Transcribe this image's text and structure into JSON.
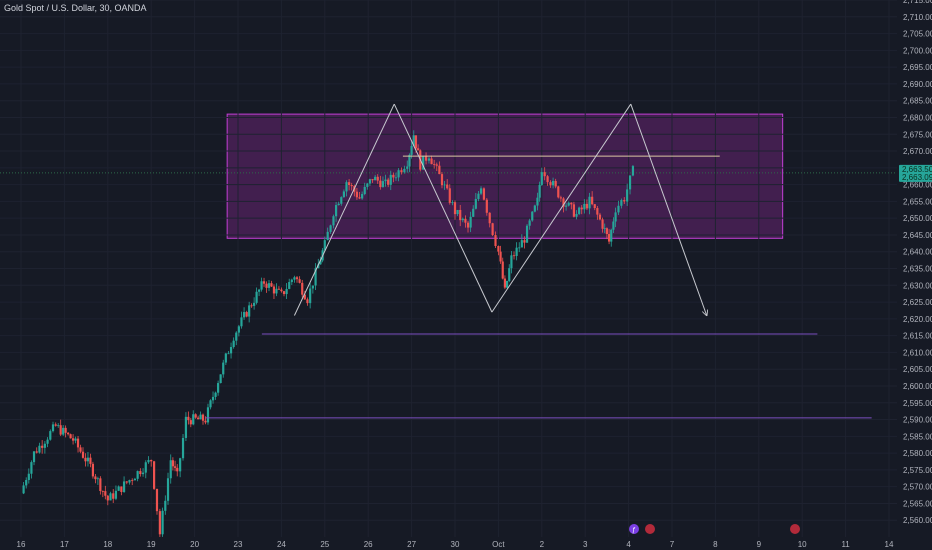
{
  "header": {
    "symbol_title": "Gold Spot / U.S. Dollar, 30, OANDA"
  },
  "chart_data": {
    "type": "candlestick",
    "symbol": "Gold Spot / U.S. Dollar",
    "interval": "30",
    "source": "OANDA",
    "ylim": [
      2555,
      2715
    ],
    "y_ticks": [
      2560,
      2565,
      2570,
      2575,
      2580,
      2585,
      2590,
      2595,
      2600,
      2605,
      2610,
      2615,
      2620,
      2625,
      2630,
      2635,
      2640,
      2645,
      2650,
      2655,
      2660,
      2665,
      2670,
      2675,
      2680,
      2685,
      2690,
      2695,
      2700,
      2705,
      2710,
      2715
    ],
    "x_ticks": [
      "16",
      "17",
      "18",
      "19",
      "20",
      "23",
      "24",
      "25",
      "26",
      "27",
      "30",
      "Oct",
      "2",
      "3",
      "4",
      "7",
      "8",
      "9",
      "10",
      "11",
      "14"
    ],
    "current_price": "2,663.505",
    "current_price_sub": "2,663.095",
    "price_path": [
      {
        "x": 0,
        "y": 2568
      },
      {
        "x": 0.3,
        "y": 2580
      },
      {
        "x": 0.8,
        "y": 2588
      },
      {
        "x": 1.2,
        "y": 2584
      },
      {
        "x": 1.6,
        "y": 2576
      },
      {
        "x": 2.0,
        "y": 2566
      },
      {
        "x": 2.5,
        "y": 2572
      },
      {
        "x": 3.0,
        "y": 2578
      },
      {
        "x": 3.2,
        "y": 2556
      },
      {
        "x": 3.45,
        "y": 2578
      },
      {
        "x": 3.6,
        "y": 2573
      },
      {
        "x": 3.8,
        "y": 2590
      },
      {
        "x": 4.25,
        "y": 2590
      },
      {
        "x": 4.6,
        "y": 2604
      },
      {
        "x": 4.9,
        "y": 2615
      },
      {
        "x": 5.2,
        "y": 2622
      },
      {
        "x": 5.6,
        "y": 2631
      },
      {
        "x": 6.0,
        "y": 2627
      },
      {
        "x": 6.3,
        "y": 2633
      },
      {
        "x": 6.6,
        "y": 2626
      },
      {
        "x": 6.85,
        "y": 2636
      },
      {
        "x": 7.0,
        "y": 2642
      },
      {
        "x": 7.2,
        "y": 2652
      },
      {
        "x": 7.5,
        "y": 2661
      },
      {
        "x": 7.8,
        "y": 2656
      },
      {
        "x": 8.1,
        "y": 2662
      },
      {
        "x": 8.4,
        "y": 2660
      },
      {
        "x": 8.7,
        "y": 2664
      },
      {
        "x": 8.9,
        "y": 2667
      },
      {
        "x": 9.05,
        "y": 2675
      },
      {
        "x": 9.2,
        "y": 2666
      },
      {
        "x": 9.4,
        "y": 2669
      },
      {
        "x": 9.7,
        "y": 2661
      },
      {
        "x": 10.0,
        "y": 2652
      },
      {
        "x": 10.3,
        "y": 2647
      },
      {
        "x": 10.6,
        "y": 2660
      },
      {
        "x": 10.8,
        "y": 2649
      },
      {
        "x": 11.0,
        "y": 2640
      },
      {
        "x": 11.15,
        "y": 2628
      },
      {
        "x": 11.3,
        "y": 2638
      },
      {
        "x": 11.6,
        "y": 2644
      },
      {
        "x": 11.9,
        "y": 2655
      },
      {
        "x": 12.0,
        "y": 2665
      },
      {
        "x": 12.2,
        "y": 2661
      },
      {
        "x": 12.5,
        "y": 2655
      },
      {
        "x": 12.8,
        "y": 2651
      },
      {
        "x": 13.1,
        "y": 2655
      },
      {
        "x": 13.4,
        "y": 2648
      },
      {
        "x": 13.55,
        "y": 2643
      },
      {
        "x": 13.7,
        "y": 2653
      },
      {
        "x": 13.9,
        "y": 2656
      },
      {
        "x": 14.1,
        "y": 2664
      }
    ],
    "annotations": {
      "zigzag": [
        {
          "x": 6.3,
          "y": 2621
        },
        {
          "x": 8.6,
          "y": 2684
        },
        {
          "x": 10.85,
          "y": 2622
        },
        {
          "x": 14.05,
          "y": 2684
        },
        {
          "x": 15.8,
          "y": 2621
        }
      ],
      "range_box": {
        "x0": 4.75,
        "x1": 17.55,
        "y0": 2644,
        "y1": 2681
      },
      "level_lines": [
        {
          "x0": 8.8,
          "x1": 16.1,
          "y": 2668.5
        },
        {
          "x0": 5.55,
          "x1": 18.35,
          "y": 2615.5
        },
        {
          "x0": 4.25,
          "x1": 19.6,
          "y": 2590.5
        }
      ]
    }
  }
}
